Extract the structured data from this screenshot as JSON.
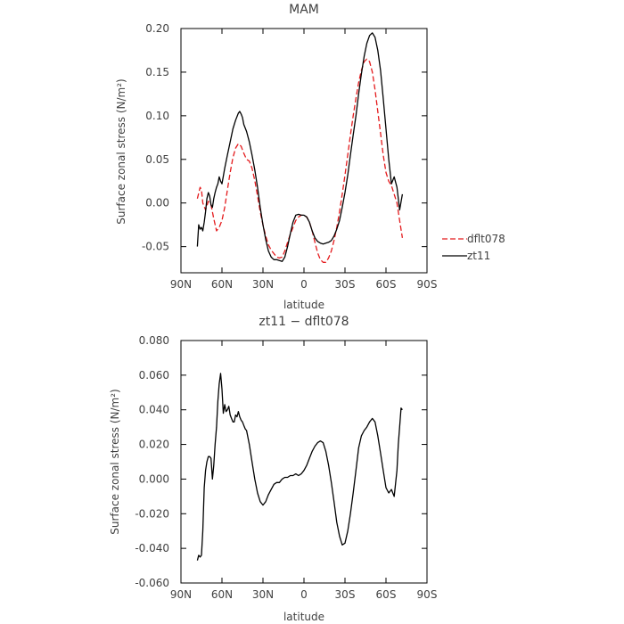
{
  "chart_data": [
    {
      "type": "line",
      "title": "MAM",
      "xlabel": "latitude",
      "ylabel": "Surface zonal stress (N/m²)",
      "xlim": [
        90,
        -90
      ],
      "ylim": [
        -0.08,
        0.2
      ],
      "x_ticks": [
        90,
        60,
        30,
        0,
        -30,
        -60,
        -90
      ],
      "x_tick_labels": [
        "90N",
        "60N",
        "30N",
        "0",
        "30S",
        "60S",
        "90S"
      ],
      "y_ticks": [
        -0.05,
        0,
        0.05,
        0.1,
        0.15,
        0.2
      ],
      "y_tick_labels": [
        "-0.05",
        "0.00",
        "0.05",
        "0.10",
        "0.15",
        "0.20"
      ],
      "grid": false,
      "legend": "right, outside plot",
      "series": [
        {
          "name": "dflt078",
          "color": "#e41a1c",
          "dash": "dashed",
          "x": [
            78,
            76,
            75,
            74,
            72,
            70,
            68,
            66,
            64,
            62,
            60,
            58,
            56,
            54,
            52,
            50,
            48,
            46,
            44,
            42,
            40,
            38,
            36,
            34,
            32,
            30,
            28,
            26,
            24,
            22,
            20,
            18,
            16,
            14,
            12,
            10,
            8,
            6,
            4,
            2,
            0,
            -2,
            -4,
            -6,
            -8,
            -10,
            -12,
            -14,
            -16,
            -18,
            -20,
            -22,
            -24,
            -26,
            -28,
            -30,
            -32,
            -34,
            -36,
            -38,
            -40,
            -42,
            -44,
            -46,
            -48,
            -50,
            -52,
            -54,
            -56,
            -58,
            -60,
            -62,
            -64,
            -66,
            -68,
            -70,
            -72
          ],
          "y": [
            0.005,
            0.018,
            0.015,
            0.0,
            -0.008,
            0.002,
            -0.002,
            -0.018,
            -0.032,
            -0.028,
            -0.02,
            -0.005,
            0.015,
            0.035,
            0.052,
            0.063,
            0.068,
            0.065,
            0.057,
            0.05,
            0.048,
            0.04,
            0.026,
            0.008,
            -0.01,
            -0.025,
            -0.038,
            -0.048,
            -0.054,
            -0.058,
            -0.062,
            -0.063,
            -0.062,
            -0.055,
            -0.045,
            -0.036,
            -0.028,
            -0.02,
            -0.016,
            -0.014,
            -0.014,
            -0.016,
            -0.022,
            -0.032,
            -0.045,
            -0.057,
            -0.065,
            -0.068,
            -0.068,
            -0.063,
            -0.055,
            -0.043,
            -0.028,
            -0.01,
            0.01,
            0.032,
            0.055,
            0.078,
            0.1,
            0.12,
            0.138,
            0.152,
            0.162,
            0.165,
            0.162,
            0.15,
            0.13,
            0.105,
            0.08,
            0.055,
            0.035,
            0.025,
            0.02,
            0.01,
            0.0,
            -0.02,
            -0.04
          ]
        },
        {
          "name": "zt11",
          "color": "#000000",
          "dash": "solid",
          "x": [
            78,
            77,
            76,
            75,
            74,
            73,
            72,
            71,
            70,
            69,
            68,
            67,
            66,
            65,
            64,
            63,
            62,
            61,
            60,
            58,
            56,
            54,
            52,
            50,
            48,
            47,
            46,
            45,
            44,
            42,
            40,
            38,
            36,
            34,
            32,
            30,
            28,
            26,
            24,
            22,
            20,
            18,
            16,
            14,
            12,
            10,
            8,
            6,
            4,
            2,
            0,
            -2,
            -4,
            -6,
            -8,
            -10,
            -12,
            -14,
            -16,
            -18,
            -20,
            -22,
            -24,
            -26,
            -28,
            -30,
            -32,
            -34,
            -36,
            -38,
            -40,
            -42,
            -44,
            -46,
            -48,
            -50,
            -52,
            -54,
            -56,
            -58,
            -60,
            -62,
            -64,
            -66,
            -68,
            -70,
            -72
          ],
          "y": [
            -0.05,
            -0.025,
            -0.03,
            -0.028,
            -0.032,
            -0.022,
            -0.01,
            0.005,
            0.012,
            0.008,
            -0.002,
            -0.005,
            0.005,
            0.012,
            0.018,
            0.022,
            0.03,
            0.025,
            0.022,
            0.04,
            0.055,
            0.07,
            0.085,
            0.095,
            0.103,
            0.105,
            0.102,
            0.098,
            0.09,
            0.082,
            0.07,
            0.055,
            0.038,
            0.018,
            -0.005,
            -0.025,
            -0.042,
            -0.055,
            -0.062,
            -0.065,
            -0.065,
            -0.066,
            -0.067,
            -0.062,
            -0.05,
            -0.035,
            -0.022,
            -0.014,
            -0.013,
            -0.014,
            -0.014,
            -0.016,
            -0.022,
            -0.032,
            -0.04,
            -0.044,
            -0.046,
            -0.047,
            -0.046,
            -0.045,
            -0.043,
            -0.038,
            -0.03,
            -0.02,
            -0.005,
            0.012,
            0.032,
            0.055,
            0.078,
            0.1,
            0.125,
            0.148,
            0.168,
            0.183,
            0.192,
            0.195,
            0.19,
            0.175,
            0.152,
            0.12,
            0.085,
            0.05,
            0.022,
            0.03,
            0.018,
            -0.008,
            0.01
          ]
        }
      ]
    },
    {
      "type": "line",
      "title": "zt11 − dflt078",
      "xlabel": "latitude",
      "ylabel": "Surface zonal stress (N/m²)",
      "xlim": [
        90,
        -90
      ],
      "ylim": [
        -0.06,
        0.08
      ],
      "x_ticks": [
        90,
        60,
        30,
        0,
        -30,
        -60,
        -90
      ],
      "x_tick_labels": [
        "90N",
        "60N",
        "30N",
        "0",
        "30S",
        "60S",
        "90S"
      ],
      "y_ticks": [
        -0.06,
        -0.04,
        -0.02,
        0,
        0.02,
        0.04,
        0.06,
        0.08
      ],
      "y_tick_labels": [
        "-0.060",
        "-0.040",
        "-0.020",
        "0.000",
        "0.020",
        "0.040",
        "0.060",
        "0.080"
      ],
      "grid": false,
      "series": [
        {
          "color": "#000000",
          "dash": "solid",
          "x": [
            78,
            77,
            76,
            75,
            74,
            73,
            72,
            71,
            70,
            69,
            68,
            67,
            66,
            65,
            64,
            63,
            62,
            61,
            60,
            59,
            58,
            57,
            56,
            55,
            54,
            53,
            52,
            51,
            50,
            49,
            48,
            47,
            46,
            45,
            44,
            43,
            42,
            40,
            38,
            36,
            34,
            32,
            30,
            28,
            26,
            24,
            22,
            20,
            18,
            16,
            14,
            12,
            10,
            8,
            6,
            4,
            2,
            0,
            -2,
            -4,
            -6,
            -8,
            -10,
            -12,
            -14,
            -16,
            -18,
            -20,
            -22,
            -24,
            -26,
            -28,
            -30,
            -32,
            -34,
            -36,
            -38,
            -40,
            -42,
            -44,
            -46,
            -48,
            -50,
            -52,
            -54,
            -56,
            -58,
            -60,
            -62,
            -64,
            -66,
            -68,
            -69,
            -70,
            -71,
            -72
          ],
          "y": [
            -0.047,
            -0.044,
            -0.045,
            -0.044,
            -0.03,
            -0.005,
            0.005,
            0.01,
            0.013,
            0.013,
            0.012,
            0.0,
            0.008,
            0.02,
            0.03,
            0.045,
            0.055,
            0.061,
            0.052,
            0.038,
            0.043,
            0.039,
            0.04,
            0.042,
            0.037,
            0.035,
            0.033,
            0.033,
            0.037,
            0.036,
            0.039,
            0.036,
            0.034,
            0.033,
            0.031,
            0.029,
            0.028,
            0.02,
            0.01,
            0.0,
            -0.008,
            -0.013,
            -0.015,
            -0.013,
            -0.009,
            -0.006,
            -0.003,
            -0.002,
            -0.002,
            0.0,
            0.001,
            0.001,
            0.002,
            0.002,
            0.003,
            0.002,
            0.003,
            0.005,
            0.008,
            0.012,
            0.016,
            0.019,
            0.021,
            0.022,
            0.021,
            0.016,
            0.008,
            -0.002,
            -0.013,
            -0.025,
            -0.033,
            -0.038,
            -0.037,
            -0.03,
            -0.02,
            -0.008,
            0.005,
            0.018,
            0.025,
            0.028,
            0.03,
            0.033,
            0.035,
            0.033,
            0.025,
            0.015,
            0.005,
            -0.005,
            -0.008,
            -0.006,
            -0.01,
            0.005,
            0.02,
            0.03,
            0.041,
            0.04
          ]
        }
      ]
    }
  ]
}
